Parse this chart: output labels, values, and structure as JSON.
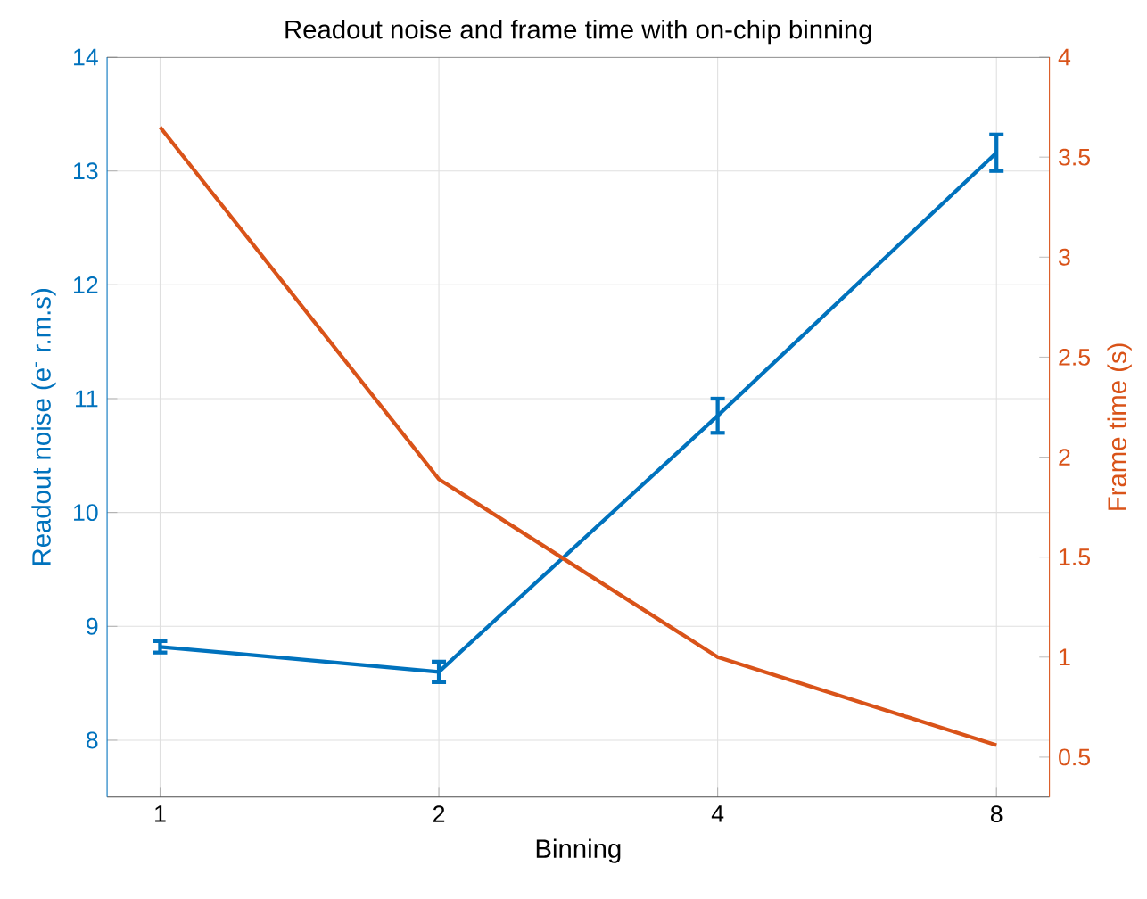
{
  "chart_data": {
    "type": "line",
    "title": "Readout noise and frame time with on-chip binning",
    "xlabel": "Binning",
    "ylabel": "Readout noise (e$^{-}$ r.m.s)",
    "y2label": "Frame time (s)",
    "categories": [
      "1",
      "2",
      "4",
      "8"
    ],
    "series": [
      {
        "color": "#0072bd",
        "values": [
          8.82,
          8.6,
          10.85,
          13.16
        ],
        "errors": [
          0.05,
          0.09,
          0.15,
          0.16
        ]
      },
      {
        "color": "#d95319",
        "values": [
          3.65,
          1.89,
          1.0,
          0.56
        ],
        "axis": "y2"
      }
    ],
    "ylim": [
      7.5,
      14
    ],
    "yticks": [
      8,
      9,
      10,
      11,
      12,
      13,
      14
    ],
    "y2lim": [
      0.3,
      4
    ],
    "y2ticks": [
      0.5,
      1,
      1.5,
      2,
      2.5,
      3,
      3.5,
      4
    ],
    "grid": true,
    "marker": "none",
    "line_style": "solid"
  }
}
